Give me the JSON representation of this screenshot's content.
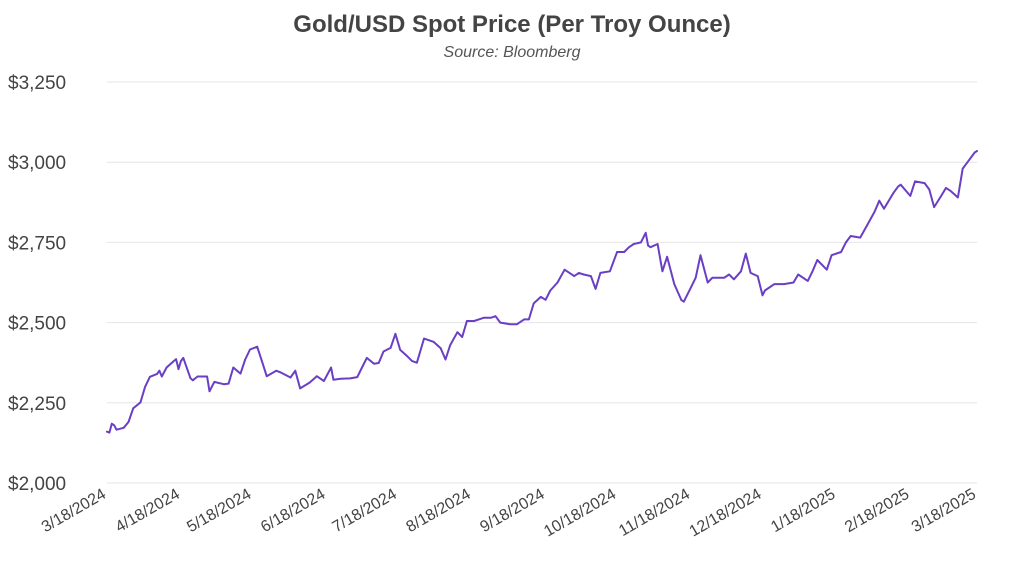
{
  "chart_data": {
    "type": "line",
    "title": "Gold/USD Spot Price (Per Troy Ounce)",
    "subtitle": "Source: Bloomberg",
    "xlabel": "",
    "ylabel": "",
    "x_tick_labels": [
      "3/18/2024",
      "4/18/2024",
      "5/18/2024",
      "6/18/2024",
      "7/18/2024",
      "8/18/2024",
      "9/18/2024",
      "10/18/2024",
      "11/18/2024",
      "12/18/2024",
      "1/18/2025",
      "2/18/2025",
      "3/18/2025"
    ],
    "y_ticks": [
      2000,
      2250,
      2500,
      2750,
      3000,
      3250
    ],
    "y_tick_labels": [
      "$2,000",
      "$2,250",
      "$2,500",
      "$2,750",
      "$3,000",
      "$3,250"
    ],
    "ylim": [
      2000,
      3250
    ],
    "grid": true,
    "legend": "none",
    "colors": {
      "line": "#6a3fc4",
      "grid": "#e6e6e6",
      "text": "#444444"
    },
    "series": [
      {
        "x": [
          "2024-03-18",
          "2024-03-19",
          "2024-03-20",
          "2024-03-21",
          "2024-03-22",
          "2024-03-25",
          "2024-03-27",
          "2024-03-29",
          "2024-04-01",
          "2024-04-03",
          "2024-04-05",
          "2024-04-08",
          "2024-04-09",
          "2024-04-10",
          "2024-04-12",
          "2024-04-15",
          "2024-04-16",
          "2024-04-17",
          "2024-04-18",
          "2024-04-19",
          "2024-04-22",
          "2024-04-23",
          "2024-04-25",
          "2024-04-29",
          "2024-04-30",
          "2024-05-02",
          "2024-05-06",
          "2024-05-08",
          "2024-05-10",
          "2024-05-13",
          "2024-05-15",
          "2024-05-17",
          "2024-05-20",
          "2024-05-22",
          "2024-05-24",
          "2024-05-28",
          "2024-05-30",
          "2024-06-03",
          "2024-06-05",
          "2024-06-07",
          "2024-06-11",
          "2024-06-14",
          "2024-06-17",
          "2024-06-20",
          "2024-06-21",
          "2024-06-24",
          "2024-06-28",
          "2024-07-01",
          "2024-07-03",
          "2024-07-05",
          "2024-07-08",
          "2024-07-10",
          "2024-07-12",
          "2024-07-15",
          "2024-07-17",
          "2024-07-19",
          "2024-07-22",
          "2024-07-24",
          "2024-07-26",
          "2024-07-29",
          "2024-07-31",
          "2024-08-02",
          "2024-08-05",
          "2024-08-07",
          "2024-08-09",
          "2024-08-12",
          "2024-08-14",
          "2024-08-16",
          "2024-08-19",
          "2024-08-21",
          "2024-08-23",
          "2024-08-26",
          "2024-08-28",
          "2024-08-30",
          "2024-09-03",
          "2024-09-06",
          "2024-09-09",
          "2024-09-11",
          "2024-09-13",
          "2024-09-16",
          "2024-09-18",
          "2024-09-20",
          "2024-09-23",
          "2024-09-26",
          "2024-09-30",
          "2024-10-02",
          "2024-10-04",
          "2024-10-07",
          "2024-10-09",
          "2024-10-11",
          "2024-10-15",
          "2024-10-18",
          "2024-10-21",
          "2024-10-23",
          "2024-10-25",
          "2024-10-28",
          "2024-10-30",
          "2024-10-31",
          "2024-11-01",
          "2024-11-04",
          "2024-11-06",
          "2024-11-08",
          "2024-11-11",
          "2024-11-14",
          "2024-11-15",
          "2024-11-18",
          "2024-11-20",
          "2024-11-22",
          "2024-11-25",
          "2024-11-27",
          "2024-12-02",
          "2024-12-04",
          "2024-12-06",
          "2024-12-09",
          "2024-12-11",
          "2024-12-13",
          "2024-12-16",
          "2024-12-18",
          "2024-12-19",
          "2024-12-23",
          "2024-12-27",
          "2024-12-31",
          "2025-01-02",
          "2025-01-06",
          "2025-01-08",
          "2025-01-10",
          "2025-01-14",
          "2025-01-16",
          "2025-01-20",
          "2025-01-22",
          "2025-01-24",
          "2025-01-28",
          "2025-01-31",
          "2025-02-03",
          "2025-02-05",
          "2025-02-07",
          "2025-02-11",
          "2025-02-13",
          "2025-02-14",
          "2025-02-18",
          "2025-02-20",
          "2025-02-24",
          "2025-02-26",
          "2025-02-28",
          "2025-03-03",
          "2025-03-05",
          "2025-03-07",
          "2025-03-10",
          "2025-03-12",
          "2025-03-14",
          "2025-03-17",
          "2025-03-18"
        ],
        "values": [
          2160,
          2157,
          2185,
          2180,
          2166,
          2172,
          2190,
          2233,
          2251,
          2300,
          2331,
          2340,
          2350,
          2332,
          2360,
          2380,
          2386,
          2355,
          2380,
          2390,
          2327,
          2320,
          2332,
          2332,
          2286,
          2315,
          2308,
          2310,
          2360,
          2341,
          2385,
          2416,
          2425,
          2380,
          2333,
          2350,
          2344,
          2329,
          2350,
          2295,
          2313,
          2333,
          2318,
          2360,
          2322,
          2325,
          2326,
          2330,
          2360,
          2390,
          2372,
          2374,
          2410,
          2421,
          2465,
          2415,
          2395,
          2380,
          2375,
          2450,
          2445,
          2440,
          2420,
          2385,
          2430,
          2470,
          2455,
          2505,
          2505,
          2510,
          2515,
          2515,
          2520,
          2500,
          2495,
          2495,
          2510,
          2510,
          2560,
          2580,
          2571,
          2600,
          2625,
          2665,
          2645,
          2655,
          2650,
          2645,
          2605,
          2655,
          2660,
          2720,
          2720,
          2735,
          2745,
          2750,
          2780,
          2740,
          2735,
          2745,
          2660,
          2705,
          2620,
          2570,
          2565,
          2610,
          2640,
          2710,
          2625,
          2640,
          2640,
          2650,
          2635,
          2660,
          2715,
          2655,
          2645,
          2585,
          2600,
          2620,
          2620,
          2625,
          2650,
          2630,
          2660,
          2695,
          2665,
          2710,
          2720,
          2750,
          2770,
          2765,
          2805,
          2845,
          2880,
          2855,
          2905,
          2925,
          2930,
          2895,
          2940,
          2935,
          2915,
          2860,
          2895,
          2920,
          2910,
          2890,
          2980,
          3000,
          3030,
          3035
        ]
      }
    ]
  }
}
